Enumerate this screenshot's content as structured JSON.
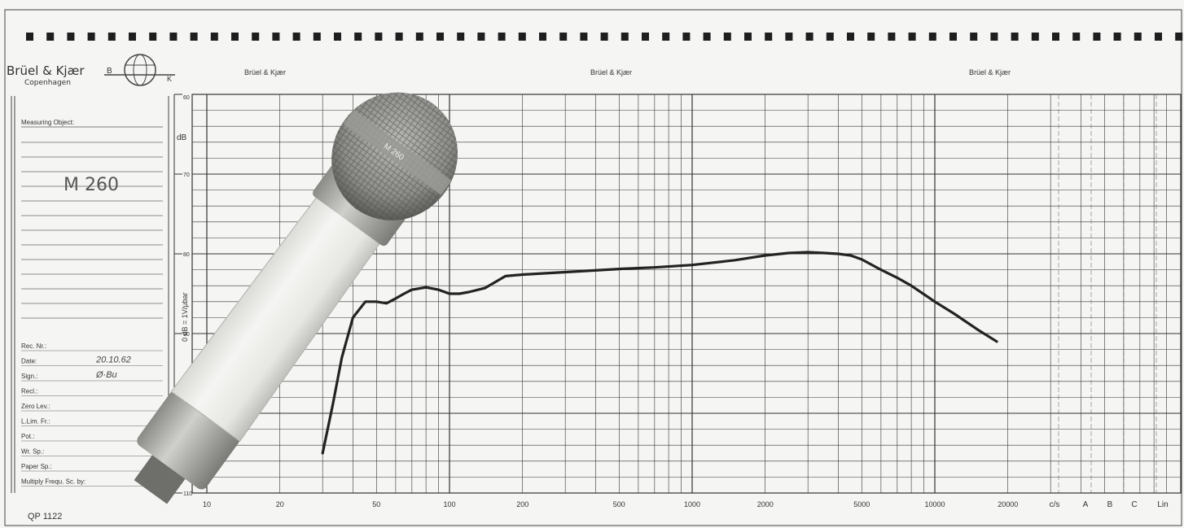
{
  "header": {
    "brand_main": "Brüel & Kjær",
    "brand_sub": "Copenhagen",
    "logo_letters": [
      "B",
      "K"
    ],
    "brand_repeats": [
      "Brüel & Kjær",
      "Brüel & Kjær",
      "Brüel & Kjær"
    ]
  },
  "form": {
    "measuring_object_label": "Measuring Object:",
    "measuring_object_value": "M 260",
    "fields": [
      {
        "label": "Rec. Nr.:",
        "value": ""
      },
      {
        "label": "Date:",
        "value": "20.10.62"
      },
      {
        "label": "Sign.:",
        "value": "Ø·Bu"
      },
      {
        "label": "Recl.:",
        "value": ""
      },
      {
        "label": "Zero Lev.:",
        "value": ""
      },
      {
        "label": "L.Lim. Fr.:",
        "value": ""
      },
      {
        "label": "Pot.:",
        "value": ""
      },
      {
        "label": "Wr. Sp.:",
        "value": ""
      },
      {
        "label": "Paper Sp.:",
        "value": ""
      },
      {
        "label": "Multiply Frequ. Sc. by:",
        "value": ""
      }
    ],
    "sheet_code": "QP 1122"
  },
  "chart_data": {
    "type": "line",
    "title": "",
    "xlabel": "c/s",
    "ylabel": "0 dB = 1V/μbar",
    "y_unit": "dB",
    "x_scale": "log",
    "xlim": [
      10,
      40000
    ],
    "ylim": [
      -110,
      -60
    ],
    "x_tick_labels": [
      "10",
      "20",
      "50",
      "100",
      "200",
      "500",
      "1000",
      "2000",
      "5000",
      "10000",
      "20000"
    ],
    "x_ticks": [
      10,
      20,
      50,
      100,
      200,
      500,
      1000,
      2000,
      5000,
      10000,
      20000
    ],
    "extra_x_labels": [
      "c/s",
      "A",
      "B",
      "C",
      "Lin"
    ],
    "y_tick_labels": [
      "60",
      "70",
      "80",
      "90",
      "100",
      "110"
    ],
    "y_ticks": [
      -60,
      -70,
      -80,
      -90,
      -100,
      -110
    ],
    "grid": true,
    "legend": "none",
    "series": [
      {
        "x": [
          30,
          33,
          36,
          40,
          45,
          50,
          55,
          60,
          65,
          70,
          80,
          90,
          100,
          110,
          120,
          140,
          170,
          200,
          300,
          500,
          700,
          1000,
          1500,
          2000,
          2500,
          3000,
          3500,
          4000,
          4500,
          5000,
          6000,
          7000,
          8000,
          10000,
          12000,
          15000,
          18000
        ],
        "y": [
          -105,
          -99,
          -93,
          -88,
          -86,
          -86,
          -86.2,
          -85.6,
          -85,
          -84.5,
          -84.2,
          -84.5,
          -85,
          -85,
          -84.8,
          -84.3,
          -82.8,
          -82.6,
          -82.3,
          -81.9,
          -81.7,
          -81.4,
          -80.8,
          -80.2,
          -79.9,
          -79.8,
          -79.9,
          -80,
          -80.2,
          -80.7,
          -82,
          -83,
          -84,
          -86,
          -87.5,
          -89.5,
          -91
        ]
      }
    ],
    "line_color": "#232323"
  },
  "photo": {
    "microphone_badge": "M 260"
  }
}
